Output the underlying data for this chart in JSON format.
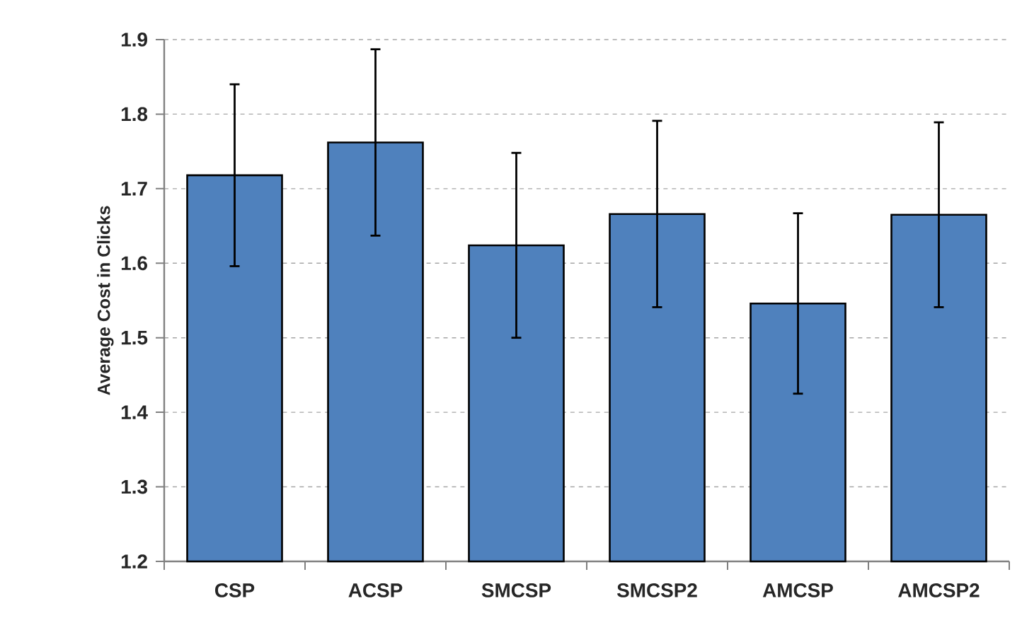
{
  "chart_data": {
    "type": "bar",
    "ylabel": "Average Cost in Clicks",
    "categories": [
      "CSP",
      "ACSP",
      "SMCSP",
      "SMCSP2",
      "AMCSP",
      "AMCSP2"
    ],
    "values": [
      1.718,
      1.762,
      1.624,
      1.666,
      1.546,
      1.665
    ],
    "errors": [
      0.122,
      0.125,
      0.124,
      0.125,
      0.121,
      0.124
    ],
    "color": "#4f81bd",
    "ylim": [
      1.2,
      1.9
    ],
    "yticks": [
      1.2,
      1.3,
      1.4,
      1.5,
      1.6,
      1.7,
      1.8,
      1.9
    ],
    "grid": "y"
  }
}
